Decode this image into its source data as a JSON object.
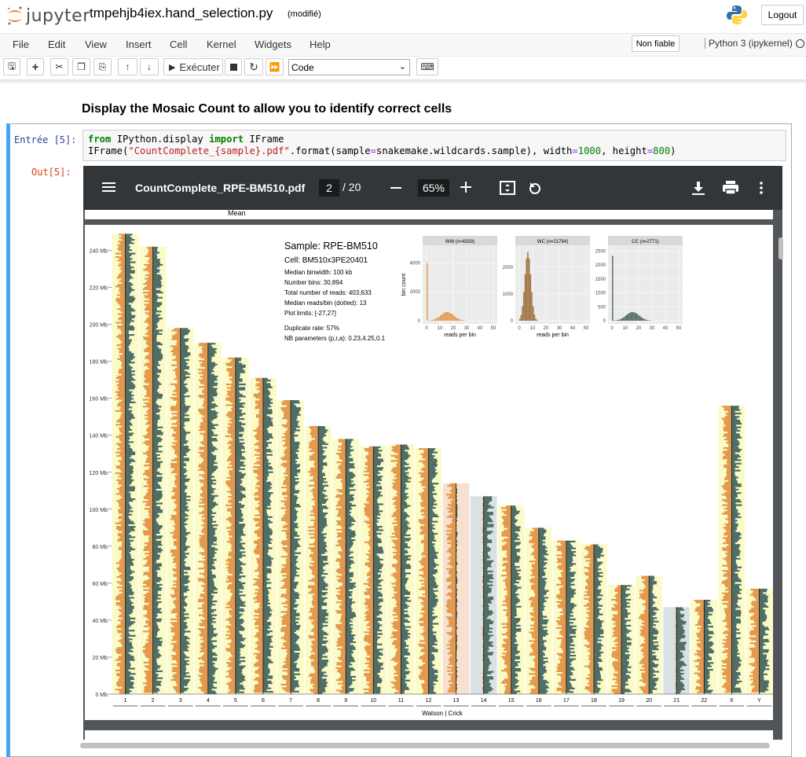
{
  "header": {
    "logo_text": "jupyter",
    "notebook_name": "tmpehjb4iex.hand_selection.py",
    "save_status": "(modifié)",
    "logout": "Logout"
  },
  "menu": [
    "File",
    "Edit",
    "View",
    "Insert",
    "Cell",
    "Kernel",
    "Widgets",
    "Help"
  ],
  "trusted": "Non fiable",
  "kernel": "Python 3 (ipykernel)",
  "toolbar": {
    "run_label": "Exécuter",
    "cell_type": "Code"
  },
  "markdown_heading": "Display the Mosaic Count to allow you to identify correct cells",
  "cell": {
    "in_prompt": "Entrée [5]:",
    "out_prompt": "Out[5]:"
  },
  "pdf": {
    "file": "CountComplete_RPE-BM510.pdf",
    "page": "2",
    "total": "/ 20",
    "zoom": "65%"
  },
  "page_prev_label": "Mean",
  "info": {
    "sample": "Sample: RPE-BM510",
    "cell": "Cell: BM510x3PE20401",
    "lines": [
      "Median binwidth: 100 kb",
      "Number bins: 30,894",
      "Total number of reads: 403,633",
      "Median reads/bin (dotted): 13",
      "Plot limits: [-27,27]"
    ],
    "dup": "Duplicate rate: 57%",
    "nb": "NB parameters (p,r,a): 0.23,4.25,0.1"
  },
  "colors": {
    "watson": "#e39a4f",
    "crick": "#4f6e67",
    "wc_bg": "#fbfbc8",
    "ww_bg": "#f6e0cf",
    "cc_bg": "#d9e1e3"
  },
  "chart_data": [
    {
      "type": "bar",
      "title": "",
      "xlabel": "Watson | Crick",
      "ylabel": "",
      "y_ticks": [
        "0 Mb",
        "20 Mb",
        "40 Mb",
        "60 Mb",
        "80 Mb",
        "100 Mb",
        "120 Mb",
        "140 Mb",
        "160 Mb",
        "180 Mb",
        "200 Mb",
        "220 Mb",
        "240 Mb"
      ],
      "categories": [
        "1",
        "2",
        "3",
        "4",
        "5",
        "6",
        "7",
        "8",
        "9",
        "10",
        "11",
        "12",
        "13",
        "14",
        "15",
        "16",
        "17",
        "18",
        "19",
        "20",
        "21",
        "22",
        "X",
        "Y"
      ],
      "chromosome_length_mb": [
        249,
        242,
        198,
        190,
        182,
        171,
        159,
        145,
        138,
        134,
        135,
        133,
        114,
        107,
        102,
        90,
        83,
        81,
        59,
        64,
        47,
        51,
        156,
        57
      ],
      "ylim": [
        0,
        250
      ]
    },
    {
      "type": "bar",
      "title": "WW (n=6339)",
      "xlabel": "reads per bin",
      "ylabel": "bin count",
      "x_ticks": [
        "0",
        "10",
        "20",
        "30",
        "40",
        "50"
      ],
      "y_ticks": [
        "0",
        "2000",
        "4000"
      ],
      "ylim": [
        0,
        5000
      ]
    },
    {
      "type": "bar",
      "title": "WC (n=21784)",
      "xlabel": "reads per bin",
      "ylabel": "",
      "x_ticks": [
        "0",
        "10",
        "20",
        "30",
        "40",
        "50"
      ],
      "y_ticks": [
        "0",
        "1000",
        "2000"
      ],
      "ylim": [
        0,
        2700
      ]
    },
    {
      "type": "bar",
      "title": "CC (n=2771)",
      "xlabel": "",
      "ylabel": "",
      "x_ticks": [
        "0",
        "10",
        "20",
        "30",
        "40",
        "50"
      ],
      "y_ticks": [
        "0",
        "500",
        "1000",
        "1500",
        "2000",
        "2500"
      ],
      "ylim": [
        0,
        2600
      ]
    }
  ]
}
